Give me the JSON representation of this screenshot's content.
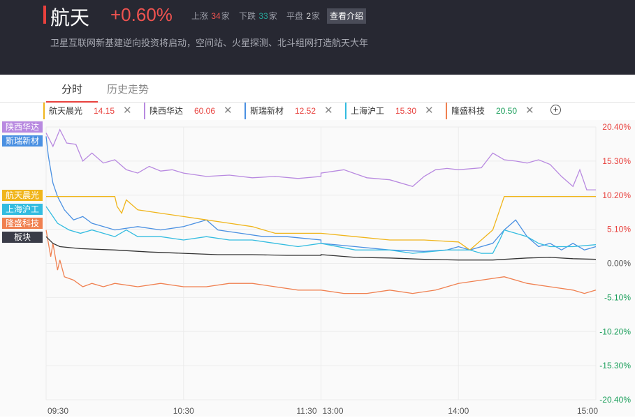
{
  "header": {
    "title": "航天",
    "change": "+0.60%",
    "up_label": "上涨",
    "up_count": "34",
    "up_unit": "家",
    "down_label": "下跌",
    "down_count": "33",
    "down_unit": "家",
    "flat_label": "平盘",
    "flat_count": "2",
    "flat_unit": "家",
    "intro_button": "查看介绍",
    "description": "卫星互联网新基建逆向投资将启动，空间站、火星探测、北斗组网打造航天大年",
    "colors": {
      "background": "#272832",
      "up": "#ef5350",
      "down": "#26a69a",
      "accent": "#e8413d"
    }
  },
  "tabs": [
    {
      "label": "分时",
      "active": true
    },
    {
      "label": "历史走势",
      "active": false
    }
  ],
  "stocks": [
    {
      "name": "航天晨光",
      "price": "14.15",
      "color": "#f0b51b",
      "price_color": "#e8413d"
    },
    {
      "name": "陕西华达",
      "price": "60.06",
      "color": "#b889e0",
      "price_color": "#e8413d"
    },
    {
      "name": "斯瑞新材",
      "price": "12.52",
      "color": "#4a90e2",
      "price_color": "#e8413d"
    },
    {
      "name": "上海沪工",
      "price": "15.30",
      "color": "#33bce0",
      "price_color": "#e8413d"
    },
    {
      "name": "隆盛科技",
      "price": "20.50",
      "color": "#f08050",
      "price_color": "#1a9e5a"
    }
  ],
  "add_icon": "plus-circle-icon",
  "close_icon": "close-x-icon",
  "chart_data": {
    "type": "line",
    "x_ticks": [
      "09:30",
      "10:30",
      "11:30",
      "13:00",
      "14:00",
      "15:00"
    ],
    "y_ticks": [
      "20.40%",
      "15.30%",
      "10.20%",
      "5.10%",
      "0.00%",
      "-5.10%",
      "-10.20%",
      "-15.30%",
      "-20.40%"
    ],
    "ylim": [
      -20.4,
      20.4
    ],
    "sessions": [
      [
        "09:30",
        "11:30"
      ],
      [
        "13:00",
        "15:00"
      ]
    ],
    "series": [
      {
        "name": "陕西华达",
        "color": "#b889e0",
        "label_color": "#b889e0",
        "points": [
          [
            "09:30",
            19.5
          ],
          [
            "09:33",
            17.5
          ],
          [
            "09:36",
            20.0
          ],
          [
            "09:39",
            18.0
          ],
          [
            "09:43",
            17.8
          ],
          [
            "09:46",
            15.3
          ],
          [
            "09:50",
            16.5
          ],
          [
            "09:55",
            15.0
          ],
          [
            "10:00",
            15.5
          ],
          [
            "10:05",
            14.0
          ],
          [
            "10:10",
            13.5
          ],
          [
            "10:15",
            14.5
          ],
          [
            "10:20",
            13.8
          ],
          [
            "10:25",
            14.0
          ],
          [
            "10:30",
            13.5
          ],
          [
            "10:40",
            13.0
          ],
          [
            "10:50",
            13.2
          ],
          [
            "11:00",
            12.8
          ],
          [
            "11:10",
            13.0
          ],
          [
            "11:20",
            12.7
          ],
          [
            "11:30",
            13.0
          ],
          [
            "13:00",
            13.5
          ],
          [
            "13:10",
            14.0
          ],
          [
            "13:20",
            12.8
          ],
          [
            "13:30",
            12.5
          ],
          [
            "13:40",
            11.5
          ],
          [
            "13:45",
            13.0
          ],
          [
            "13:50",
            14.0
          ],
          [
            "13:55",
            14.2
          ],
          [
            "14:00",
            14.0
          ],
          [
            "14:10",
            14.3
          ],
          [
            "14:15",
            16.5
          ],
          [
            "14:20",
            15.5
          ],
          [
            "14:25",
            15.3
          ],
          [
            "14:30",
            15.0
          ],
          [
            "14:35",
            15.5
          ],
          [
            "14:40",
            14.8
          ],
          [
            "14:45",
            13.0
          ],
          [
            "14:50",
            11.5
          ],
          [
            "14:53",
            14.0
          ],
          [
            "14:56",
            11.0
          ],
          [
            "15:00",
            11.0
          ]
        ]
      },
      {
        "name": "斯瑞新材",
        "color": "#4a90e2",
        "label_color": "#4a90e2",
        "points": [
          [
            "09:30",
            19.0
          ],
          [
            "09:31",
            16.0
          ],
          [
            "09:33",
            12.0
          ],
          [
            "09:35",
            10.0
          ],
          [
            "09:38",
            8.0
          ],
          [
            "09:42",
            6.5
          ],
          [
            "09:46",
            7.0
          ],
          [
            "09:50",
            6.0
          ],
          [
            "09:55",
            5.5
          ],
          [
            "10:00",
            5.0
          ],
          [
            "10:10",
            5.5
          ],
          [
            "10:20",
            5.0
          ],
          [
            "10:30",
            5.5
          ],
          [
            "10:40",
            6.5
          ],
          [
            "10:45",
            5.0
          ],
          [
            "10:55",
            4.5
          ],
          [
            "11:05",
            4.0
          ],
          [
            "11:15",
            4.0
          ],
          [
            "11:30",
            3.5
          ],
          [
            "13:00",
            3.0
          ],
          [
            "13:15",
            2.5
          ],
          [
            "13:30",
            2.0
          ],
          [
            "13:45",
            1.8
          ],
          [
            "13:55",
            2.0
          ],
          [
            "14:00",
            2.5
          ],
          [
            "14:05",
            2.0
          ],
          [
            "14:10",
            2.5
          ],
          [
            "14:15",
            3.0
          ],
          [
            "14:20",
            5.0
          ],
          [
            "14:25",
            6.5
          ],
          [
            "14:30",
            4.0
          ],
          [
            "14:35",
            2.5
          ],
          [
            "14:40",
            3.0
          ],
          [
            "14:45",
            2.0
          ],
          [
            "14:50",
            3.0
          ],
          [
            "14:55",
            2.0
          ],
          [
            "15:00",
            2.5
          ]
        ]
      },
      {
        "name": "航天晨光",
        "color": "#f0b51b",
        "label_color": "#f0b51b",
        "points": [
          [
            "09:30",
            10.0
          ],
          [
            "10:00",
            10.0
          ],
          [
            "10:01",
            8.5
          ],
          [
            "10:03",
            7.5
          ],
          [
            "10:05",
            9.5
          ],
          [
            "10:10",
            8.0
          ],
          [
            "10:20",
            7.5
          ],
          [
            "10:30",
            7.0
          ],
          [
            "10:40",
            6.5
          ],
          [
            "10:50",
            6.0
          ],
          [
            "11:00",
            5.5
          ],
          [
            "11:10",
            4.5
          ],
          [
            "11:20",
            4.5
          ],
          [
            "11:30",
            4.5
          ],
          [
            "13:00",
            4.5
          ],
          [
            "13:15",
            4.0
          ],
          [
            "13:30",
            3.5
          ],
          [
            "13:45",
            3.5
          ],
          [
            "14:00",
            3.2
          ],
          [
            "14:05",
            2.0
          ],
          [
            "14:10",
            3.5
          ],
          [
            "14:15",
            5.0
          ],
          [
            "14:18",
            8.0
          ],
          [
            "14:20",
            10.0
          ],
          [
            "14:22",
            10.0
          ],
          [
            "15:00",
            10.0
          ]
        ]
      },
      {
        "name": "上海沪工",
        "color": "#33bce0",
        "label_color": "#33bce0",
        "points": [
          [
            "09:30",
            8.5
          ],
          [
            "09:35",
            6.0
          ],
          [
            "09:40",
            5.0
          ],
          [
            "09:45",
            4.5
          ],
          [
            "09:50",
            5.0
          ],
          [
            "10:00",
            4.0
          ],
          [
            "10:05",
            5.0
          ],
          [
            "10:10",
            4.0
          ],
          [
            "10:20",
            4.0
          ],
          [
            "10:30",
            3.5
          ],
          [
            "10:40",
            4.0
          ],
          [
            "10:50",
            3.5
          ],
          [
            "11:00",
            3.5
          ],
          [
            "11:10",
            3.0
          ],
          [
            "11:20",
            2.5
          ],
          [
            "11:30",
            3.0
          ],
          [
            "13:00",
            3.0
          ],
          [
            "13:15",
            2.0
          ],
          [
            "13:30",
            2.0
          ],
          [
            "13:40",
            1.5
          ],
          [
            "13:55",
            2.0
          ],
          [
            "14:00",
            2.0
          ],
          [
            "14:05",
            2.0
          ],
          [
            "14:10",
            1.5
          ],
          [
            "14:15",
            1.5
          ],
          [
            "14:18",
            3.5
          ],
          [
            "14:20",
            5.0
          ],
          [
            "14:25",
            4.5
          ],
          [
            "14:30",
            4.0
          ],
          [
            "14:35",
            3.0
          ],
          [
            "14:40",
            2.5
          ],
          [
            "14:50",
            2.5
          ],
          [
            "15:00",
            2.8
          ]
        ]
      },
      {
        "name": "隆盛科技",
        "color": "#f08050",
        "label_color": "#f08050",
        "points": [
          [
            "09:30",
            5.0
          ],
          [
            "09:32",
            1.0
          ],
          [
            "09:33",
            3.0
          ],
          [
            "09:35",
            -1.0
          ],
          [
            "09:36",
            0.5
          ],
          [
            "09:38",
            -2.0
          ],
          [
            "09:42",
            -2.5
          ],
          [
            "09:46",
            -3.5
          ],
          [
            "09:50",
            -3.0
          ],
          [
            "09:55",
            -3.5
          ],
          [
            "10:00",
            -3.0
          ],
          [
            "10:10",
            -3.5
          ],
          [
            "10:20",
            -3.0
          ],
          [
            "10:30",
            -3.5
          ],
          [
            "10:40",
            -3.5
          ],
          [
            "10:50",
            -3.0
          ],
          [
            "11:00",
            -3.0
          ],
          [
            "11:10",
            -3.5
          ],
          [
            "11:20",
            -4.0
          ],
          [
            "11:30",
            -4.0
          ],
          [
            "13:00",
            -4.0
          ],
          [
            "13:10",
            -4.5
          ],
          [
            "13:20",
            -4.5
          ],
          [
            "13:30",
            -4.0
          ],
          [
            "13:40",
            -4.5
          ],
          [
            "13:50",
            -4.0
          ],
          [
            "14:00",
            -3.0
          ],
          [
            "14:10",
            -2.5
          ],
          [
            "14:20",
            -2.0
          ],
          [
            "14:30",
            -3.0
          ],
          [
            "14:40",
            -3.5
          ],
          [
            "14:50",
            -4.0
          ],
          [
            "14:55",
            -4.5
          ],
          [
            "15:00",
            -4.0
          ]
        ]
      },
      {
        "name": "板块",
        "color": "#333333",
        "label_color": "#3a3c48",
        "points": [
          [
            "09:30",
            4.0
          ],
          [
            "09:33",
            3.0
          ],
          [
            "09:36",
            2.5
          ],
          [
            "09:45",
            2.2
          ],
          [
            "10:00",
            2.0
          ],
          [
            "10:15",
            1.7
          ],
          [
            "10:30",
            1.5
          ],
          [
            "10:45",
            1.3
          ],
          [
            "11:00",
            1.3
          ],
          [
            "11:15",
            1.2
          ],
          [
            "11:30",
            1.2
          ],
          [
            "13:00",
            1.3
          ],
          [
            "13:15",
            0.9
          ],
          [
            "13:30",
            0.8
          ],
          [
            "13:45",
            0.6
          ],
          [
            "14:00",
            0.5
          ],
          [
            "14:15",
            0.5
          ],
          [
            "14:30",
            0.8
          ],
          [
            "14:40",
            0.9
          ],
          [
            "14:50",
            0.7
          ],
          [
            "15:00",
            0.6
          ]
        ]
      }
    ],
    "left_labels": [
      "陕西华达",
      "斯瑞新材",
      "航天晨光",
      "上海沪工",
      "隆盛科技",
      "板块"
    ]
  }
}
